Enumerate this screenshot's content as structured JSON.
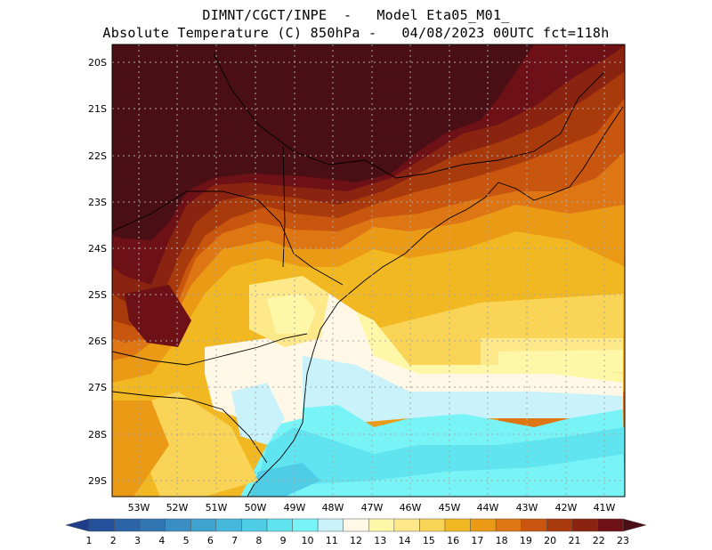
{
  "title_line1": "DIMNT/CGCT/INPE  -   Model Eta05_M01_",
  "title_line2": "Absolute Temperature (C) 850hPa -   04/08/2023 00UTC fct=118h",
  "lat_labels": [
    "20S",
    "21S",
    "22S",
    "23S",
    "24S",
    "25S",
    "26S",
    "27S",
    "28S",
    "29S"
  ],
  "lon_labels": [
    "53W",
    "52W",
    "51W",
    "50W",
    "49W",
    "48W",
    "47W",
    "46W",
    "45W",
    "44W",
    "43W",
    "42W",
    "41W"
  ],
  "colorbar": {
    "labels": [
      "1",
      "2",
      "3",
      "4",
      "5",
      "6",
      "7",
      "8",
      "9",
      "10",
      "11",
      "12",
      "13",
      "14",
      "15",
      "16",
      "17",
      "18",
      "19",
      "20",
      "21",
      "22",
      "23"
    ],
    "colors": [
      "#1f3c8c",
      "#23509b",
      "#2c64a8",
      "#3176b3",
      "#3a8ec4",
      "#3fa3d0",
      "#46b8dc",
      "#4fcde6",
      "#5fe4f0",
      "#78f3f6",
      "#c9f2fa",
      "#fff8e6",
      "#fff7a8",
      "#fde88a",
      "#f9d456",
      "#f2b822",
      "#eb9a16",
      "#de7713",
      "#c9560e",
      "#a93a0b",
      "#8a2410",
      "#6e1117",
      "#4a0f14"
    ]
  },
  "colors": {
    "c10": "#78f3f6",
    "c11": "#c9f2fa",
    "c12": "#fff8e6",
    "c13": "#fff7a8",
    "c14": "#fde88a",
    "c15": "#f9d456",
    "c16": "#f2b822",
    "c17": "#eb9a16",
    "c18": "#de7713",
    "c19": "#c9560e",
    "c20": "#a93a0b",
    "c21": "#8a2410",
    "c22": "#6e1117",
    "c23": "#4a0f14"
  }
}
